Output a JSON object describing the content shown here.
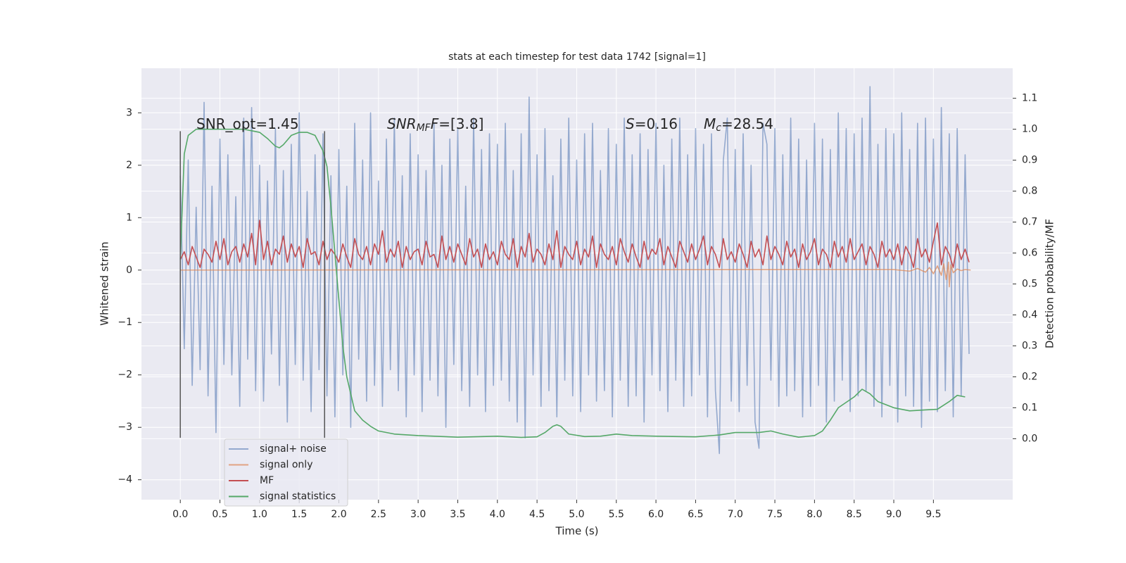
{
  "chart_data": {
    "type": "line",
    "title": "stats at each timestep for test data 1742 [signal=1]",
    "xlabel": "Time (s)",
    "ylabel": "Whitened strain",
    "y2label": "Detection probability/MF",
    "xlim": [
      -0.49,
      10.5
    ],
    "ylim": [
      -4.38,
      3.85
    ],
    "y2lim": [
      -0.197,
      1.197
    ],
    "grid": true,
    "legend": "lower left",
    "xticks": [
      {
        "value": 0,
        "label": "0.0"
      },
      0.5,
      {
        "value": 1,
        "label": "1.0"
      },
      1.5,
      {
        "value": 2,
        "label": "2.0"
      },
      2.5,
      {
        "value": 3,
        "label": "3.0"
      },
      3.5,
      {
        "value": 4,
        "label": "4.0"
      },
      4.5,
      {
        "value": 5,
        "label": "5.0"
      },
      5.5,
      {
        "value": 6,
        "label": "6.0"
      },
      6.5,
      {
        "value": 7,
        "label": "7.0"
      },
      7.5,
      {
        "value": 8,
        "label": "8.0"
      },
      8.5,
      {
        "value": 9,
        "label": "9.0"
      },
      9.5
    ],
    "yticks": [
      {
        "value": -4,
        "label": "−4"
      },
      {
        "value": -3,
        "label": "−3"
      },
      {
        "value": -2,
        "label": "−2"
      },
      {
        "value": -1,
        "label": "−1"
      },
      0,
      1,
      2,
      3
    ],
    "y2ticks": [
      {
        "value": 0,
        "label": "0.0"
      },
      0.1,
      0.2,
      0.3,
      0.4,
      0.5,
      0.6,
      0.7,
      0.8,
      0.9,
      {
        "value": 1,
        "label": "1.0"
      },
      1.1
    ],
    "annotations": [
      [
        {
          "text": "SNR_opt=1.45"
        }
      ],
      [
        {
          "text": "SNR",
          "italic": true
        },
        {
          "text": "MF",
          "italic": true,
          "sub": true
        },
        {
          "text": "F",
          "italic": true
        },
        {
          "text": "=[3.8]"
        }
      ],
      [
        {
          "text": "S",
          "italic": true
        },
        {
          "text": "=0.16"
        }
      ],
      [
        {
          "text": "M",
          "italic": true
        },
        {
          "text": "c",
          "italic": true,
          "sub": true
        },
        {
          "text": "=28.54"
        }
      ]
    ],
    "vlines": {
      "x": [
        0,
        1.82
      ],
      "ymin": -3.2,
      "ymax": 2.65,
      "color": "#555555"
    },
    "x": [
      0,
      0.05,
      0.1,
      0.15,
      0.2,
      0.25,
      0.3,
      0.35,
      0.4,
      0.45,
      0.5,
      0.55,
      0.6,
      0.65,
      0.7,
      0.75,
      0.8,
      0.85,
      0.9,
      0.95,
      1,
      1.05,
      1.1,
      1.15,
      1.2,
      1.25,
      1.3,
      1.35,
      1.4,
      1.45,
      1.5,
      1.55,
      1.6,
      1.65,
      1.7,
      1.75,
      1.8,
      1.85,
      1.9,
      1.95,
      2,
      2.05,
      2.1,
      2.15,
      2.2,
      2.25,
      2.3,
      2.35,
      2.4,
      2.45,
      2.5,
      2.55,
      2.6,
      2.65,
      2.7,
      2.75,
      2.8,
      2.85,
      2.9,
      2.95,
      3,
      3.05,
      3.1,
      3.15,
      3.2,
      3.25,
      3.3,
      3.35,
      3.4,
      3.45,
      3.5,
      3.55,
      3.6,
      3.65,
      3.7,
      3.75,
      3.8,
      3.85,
      3.9,
      3.95,
      4,
      4.05,
      4.1,
      4.15,
      4.2,
      4.25,
      4.3,
      4.35,
      4.4,
      4.45,
      4.5,
      4.55,
      4.6,
      4.65,
      4.7,
      4.75,
      4.8,
      4.85,
      4.9,
      4.95,
      5,
      5.05,
      5.1,
      5.15,
      5.2,
      5.25,
      5.3,
      5.35,
      5.4,
      5.45,
      5.5,
      5.55,
      5.6,
      5.65,
      5.7,
      5.75,
      5.8,
      5.85,
      5.9,
      5.95,
      6,
      6.05,
      6.1,
      6.15,
      6.2,
      6.25,
      6.3,
      6.35,
      6.4,
      6.45,
      6.5,
      6.55,
      6.6,
      6.65,
      6.7,
      6.75,
      6.8,
      6.85,
      6.9,
      6.95,
      7,
      7.05,
      7.1,
      7.15,
      7.2,
      7.25,
      7.3,
      7.35,
      7.4,
      7.45,
      7.5,
      7.55,
      7.6,
      7.65,
      7.7,
      7.75,
      7.8,
      7.85,
      7.9,
      7.95,
      8,
      8.05,
      8.1,
      8.15,
      8.2,
      8.25,
      8.3,
      8.35,
      8.4,
      8.45,
      8.5,
      8.55,
      8.6,
      8.65,
      8.7,
      8.75,
      8.8,
      8.85,
      8.9,
      8.95,
      9,
      9.05,
      9.1,
      9.15,
      9.2,
      9.25,
      9.3,
      9.35,
      9.4,
      9.45,
      9.5,
      9.55,
      9.6,
      9.65,
      9.7,
      9.75,
      9.8,
      9.85,
      9.9,
      9.95
    ],
    "series": [
      {
        "name": "signal+ noise",
        "color": "#4c72b0",
        "alpha": 0.55,
        "values": [
          1.8,
          -1.5,
          2.1,
          -2.2,
          1.2,
          -1.9,
          3.2,
          -2.4,
          1.6,
          -3.1,
          2.5,
          -1.8,
          2.2,
          -2.0,
          1.4,
          -2.6,
          2.9,
          -1.7,
          3.1,
          -2.3,
          2.0,
          -2.5,
          1.7,
          -1.6,
          2.7,
          -2.2,
          1.9,
          -2.9,
          2.4,
          -1.8,
          3.0,
          -2.1,
          1.5,
          -2.7,
          2.2,
          -1.9,
          2.6,
          -2.4,
          1.8,
          -2.8,
          2.3,
          -2.0,
          1.6,
          -3.0,
          2.8,
          -1.7,
          2.1,
          -2.5,
          3.0,
          -2.2,
          1.7,
          -2.6,
          2.5,
          -1.9,
          2.9,
          -2.3,
          1.8,
          -2.8,
          2.6,
          -2.0,
          2.2,
          -2.7,
          1.9,
          -2.1,
          2.8,
          -2.4,
          2.0,
          -3.0,
          2.5,
          -1.8,
          2.7,
          -2.3,
          1.6,
          -2.6,
          2.9,
          -2.0,
          2.3,
          -2.7,
          2.6,
          -2.2,
          2.4,
          -2.1,
          2.8,
          -2.5,
          1.9,
          -2.9,
          2.6,
          -3.2,
          3.3,
          -2.0,
          2.2,
          -2.6,
          2.7,
          -2.3,
          1.8,
          -2.8,
          2.5,
          -2.1,
          2.9,
          -2.4,
          2.1,
          -2.7,
          2.6,
          -2.0,
          2.8,
          -2.5,
          1.9,
          -2.3,
          2.7,
          -2.8,
          2.4,
          -2.1,
          2.9,
          -2.6,
          2.2,
          -2.4,
          2.6,
          -2.9,
          2.3,
          -2.0,
          2.8,
          -2.3,
          2.0,
          -2.7,
          2.5,
          -2.1,
          2.9,
          -2.6,
          2.2,
          -2.4,
          2.7,
          -2.0,
          2.4,
          -2.8,
          2.6,
          -2.3,
          -3.5,
          2.1,
          2.9,
          -2.5,
          2.3,
          -2.7,
          2.6,
          -2.2,
          2.0,
          -2.9,
          -3.4,
          2.8,
          2.4,
          -2.1,
          2.7,
          -2.6,
          2.2,
          -2.4,
          2.9,
          -2.3,
          2.5,
          -2.8,
          2.1,
          -2.6,
          2.8,
          -2.2,
          2.5,
          -2.9,
          2.3,
          -2.5,
          3.0,
          -2.1,
          2.7,
          -2.7,
          2.6,
          -2.4,
          2.9,
          -2.3,
          3.5,
          -2.6,
          2.4,
          -2.8,
          2.7,
          -2.2,
          2.6,
          -2.9,
          3.0,
          -2.4,
          2.3,
          -2.6,
          2.8,
          -3.0,
          2.9,
          -2.5,
          2.5,
          -2.7,
          3.1,
          -2.3,
          2.6,
          -2.8,
          2.7,
          -2.4,
          2.2,
          -1.6
        ]
      },
      {
        "name": "signal only",
        "color": "#dd8452",
        "alpha": 0.7,
        "x": [
          0,
          9.0,
          9.2,
          9.3,
          9.4,
          9.45,
          9.5,
          9.55,
          9.6,
          9.63,
          9.66,
          9.69,
          9.7,
          9.72,
          9.75,
          9.8,
          9.85,
          9.9,
          9.97
        ],
        "values": [
          0,
          0.01,
          -0.02,
          0.03,
          -0.04,
          0.05,
          -0.07,
          0.08,
          -0.1,
          0.12,
          -0.18,
          0.15,
          -0.32,
          0.1,
          -0.05,
          0.02,
          -0.01,
          0.01,
          0
        ]
      },
      {
        "name": "MF",
        "color": "#c44e52",
        "alpha": 1,
        "values": [
          0.2,
          0.35,
          0.1,
          0.45,
          0.25,
          0.05,
          0.4,
          0.3,
          0.15,
          0.55,
          0.2,
          0.6,
          0.1,
          0.35,
          0.45,
          0.15,
          0.5,
          0.25,
          0.7,
          0.1,
          0.95,
          0.2,
          0.55,
          0.1,
          0.4,
          0.3,
          0.65,
          0.15,
          0.5,
          0.25,
          0.45,
          0.05,
          0.6,
          0.3,
          0.35,
          0.1,
          0.55,
          0.2,
          0.4,
          0.3,
          0.15,
          0.5,
          0.25,
          0.05,
          0.6,
          0.3,
          0.2,
          0.45,
          0.1,
          0.5,
          0.3,
          0.75,
          0.15,
          0.4,
          0.25,
          0.55,
          0.05,
          0.45,
          0.2,
          0.35,
          0.4,
          0.1,
          0.55,
          0.25,
          0.3,
          0.05,
          0.65,
          0.2,
          0.45,
          0.15,
          0.5,
          0.3,
          0.1,
          0.6,
          0.25,
          0.4,
          0.05,
          0.5,
          0.2,
          0.35,
          0.1,
          0.55,
          0.3,
          0.2,
          0.6,
          0.05,
          0.45,
          0.25,
          0.7,
          0.15,
          0.4,
          0.3,
          0.1,
          0.5,
          0.2,
          0.75,
          0.05,
          0.45,
          0.3,
          0.2,
          0.55,
          0.1,
          0.4,
          0.25,
          0.65,
          0.05,
          0.5,
          0.3,
          0.2,
          0.45,
          0.1,
          0.6,
          0.35,
          0.15,
          0.5,
          0.25,
          0.05,
          0.55,
          0.2,
          0.4,
          0.3,
          0.6,
          0.1,
          0.45,
          0.25,
          0.05,
          0.55,
          0.35,
          0.15,
          0.5,
          0.2,
          0.4,
          0.65,
          0.1,
          0.45,
          0.3,
          0.05,
          0.6,
          0.2,
          0.35,
          0.15,
          0.5,
          0.3,
          0.05,
          0.55,
          0.25,
          0.4,
          0.1,
          0.65,
          0.2,
          0.45,
          0.3,
          0.1,
          0.55,
          0.25,
          0.4,
          0.05,
          0.5,
          0.2,
          0.35,
          0.6,
          0.1,
          0.4,
          0.3,
          0.05,
          0.55,
          0.25,
          0.45,
          0.15,
          0.6,
          0.2,
          0.35,
          0.5,
          0.1,
          0.45,
          0.3,
          0.05,
          0.55,
          0.25,
          0.4,
          0.2,
          0.5,
          0.1,
          0.45,
          0.3,
          0.05,
          0.6,
          0.25,
          0.4,
          0.15,
          0.55,
          0.9,
          0.1,
          0.45,
          0.3,
          0.05,
          0.5,
          0.2,
          0.4,
          0.15
        ]
      },
      {
        "name": "signal statistics",
        "color": "#55a868",
        "alpha": 1,
        "axis": "y2",
        "x": [
          0,
          0.05,
          0.1,
          0.2,
          0.4,
          0.6,
          0.8,
          0.9,
          1.0,
          1.1,
          1.2,
          1.25,
          1.3,
          1.4,
          1.5,
          1.6,
          1.7,
          1.8,
          1.85,
          1.9,
          1.95,
          2.0,
          2.05,
          2.1,
          2.2,
          2.3,
          2.4,
          2.5,
          2.7,
          3.0,
          3.5,
          4.0,
          4.3,
          4.5,
          4.6,
          4.7,
          4.75,
          4.8,
          4.9,
          5.1,
          5.3,
          5.5,
          5.7,
          6.0,
          6.5,
          6.8,
          7.0,
          7.3,
          7.45,
          7.6,
          7.8,
          8.0,
          8.1,
          8.2,
          8.3,
          8.5,
          8.6,
          8.7,
          8.8,
          9.0,
          9.2,
          9.4,
          9.55,
          9.7,
          9.8,
          9.9
        ],
        "values": [
          0.58,
          0.92,
          0.98,
          1.0,
          1.0,
          1.0,
          1.0,
          0.995,
          0.99,
          0.97,
          0.945,
          0.94,
          0.95,
          0.98,
          0.99,
          0.99,
          0.98,
          0.93,
          0.88,
          0.75,
          0.6,
          0.45,
          0.3,
          0.2,
          0.09,
          0.06,
          0.04,
          0.025,
          0.015,
          0.01,
          0.005,
          0.008,
          0.004,
          0.006,
          0.02,
          0.04,
          0.045,
          0.04,
          0.015,
          0.007,
          0.008,
          0.015,
          0.01,
          0.008,
          0.006,
          0.012,
          0.02,
          0.02,
          0.025,
          0.015,
          0.005,
          0.01,
          0.025,
          0.06,
          0.1,
          0.135,
          0.16,
          0.145,
          0.12,
          0.1,
          0.09,
          0.093,
          0.095,
          0.12,
          0.14,
          0.135
        ]
      }
    ]
  }
}
